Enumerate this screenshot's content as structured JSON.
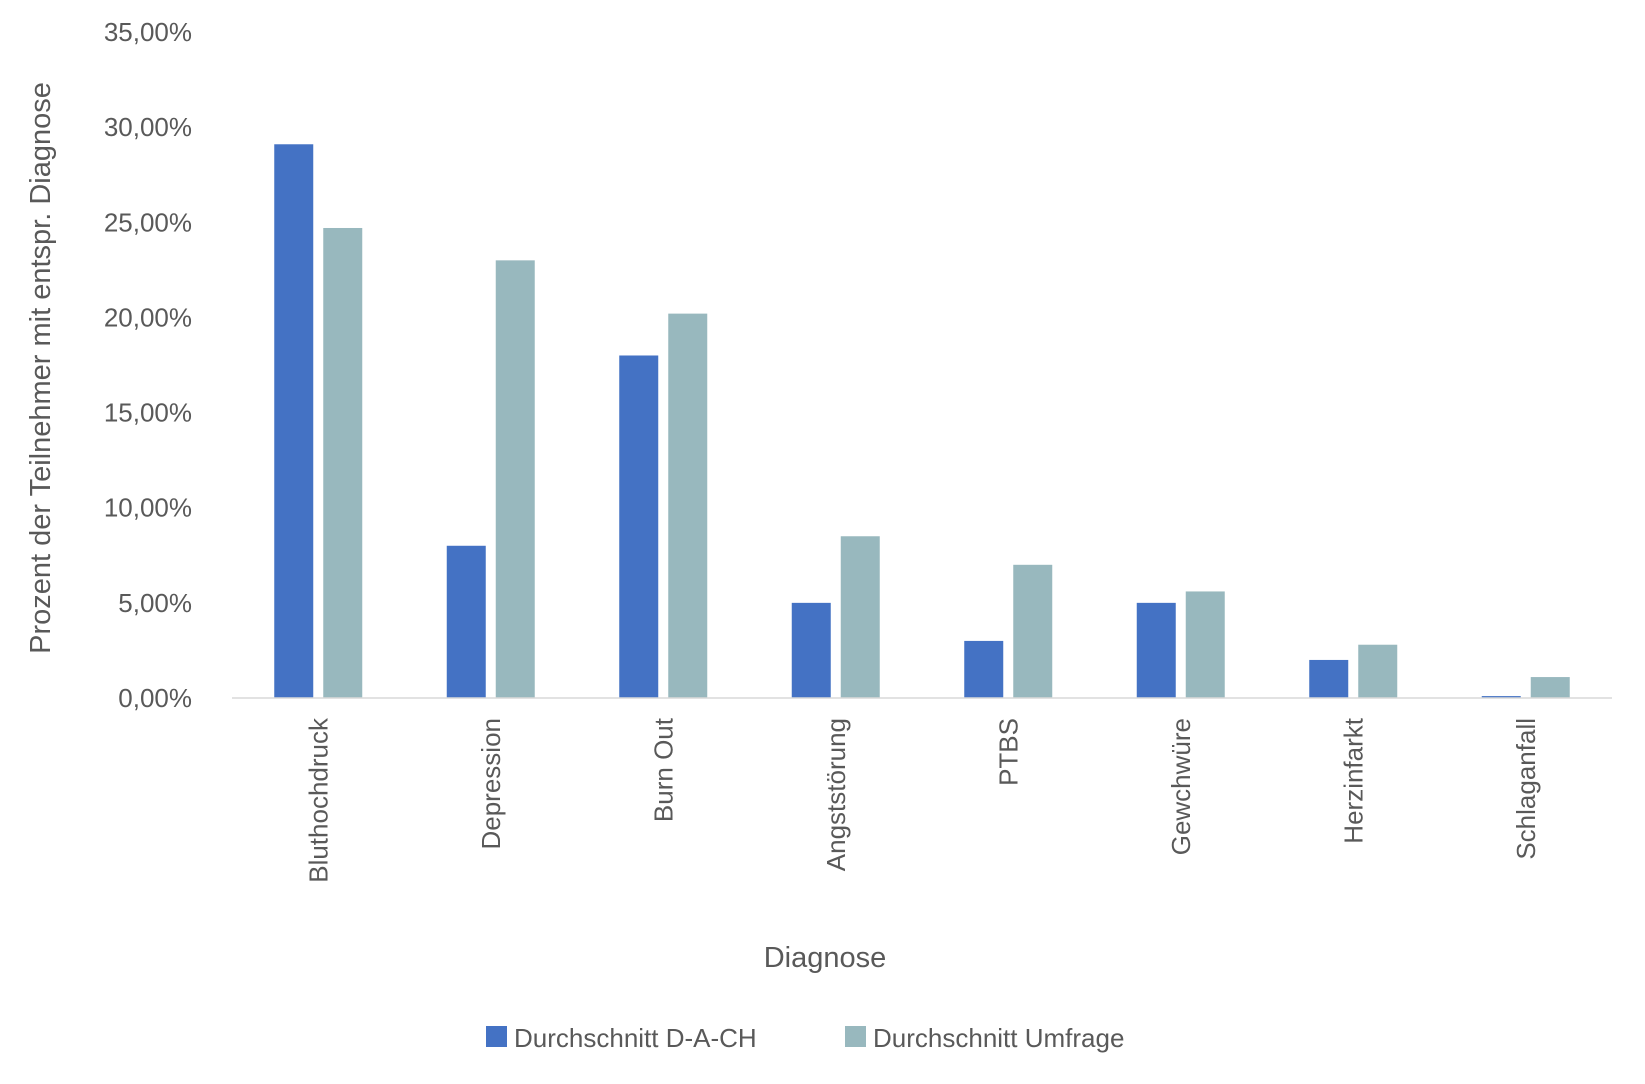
{
  "chart_data": {
    "type": "bar",
    "categories": [
      "Bluthochdruck",
      "Depression",
      "Burn Out",
      "Angststörung",
      "PTBS",
      "Gewchwüre",
      "Herzinfarkt",
      "Schlaganfall"
    ],
    "series": [
      {
        "name": "Durchschnitt D-A-CH",
        "color": "#4472C4",
        "values": [
          29.1,
          8.0,
          18.0,
          5.0,
          3.0,
          5.0,
          2.0,
          0.1
        ]
      },
      {
        "name": "Durchschnitt Umfrage",
        "color": "#98B8BE",
        "values": [
          24.7,
          23.0,
          20.2,
          8.5,
          7.0,
          5.6,
          2.8,
          1.1
        ]
      }
    ],
    "xlabel": "Diagnose",
    "ylabel": "Prozent der Teilnehmer mit entspr. Diagnose",
    "ylim": [
      0,
      35
    ],
    "yticks": [
      "0,00%",
      "5,00%",
      "10,00%",
      "15,00%",
      "20,00%",
      "25,00%",
      "30,00%",
      "35,00%"
    ],
    "grid": false,
    "legend": "bottom"
  }
}
